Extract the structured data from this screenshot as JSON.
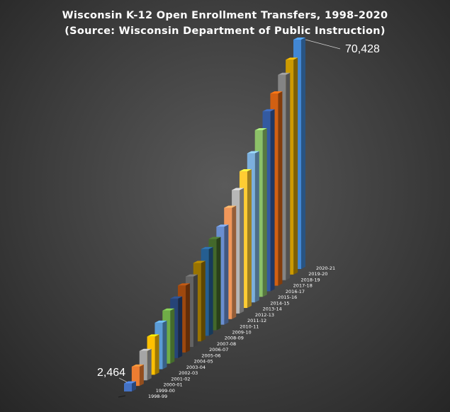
{
  "chart_data": {
    "type": "bar",
    "title": "Wisconsin K-12 Open Enrollment Transfers, 1998-2020",
    "subtitle": "(Source: Wisconsin Department of Public Instruction)",
    "categories": [
      "1998-99",
      "1999-00",
      "2000-01",
      "2001-02",
      "2002-03",
      "2003-04",
      "2004-05",
      "2005-06",
      "2006-07",
      "2007-08",
      "2008-09",
      "2009-10",
      "2010-11",
      "2011-12",
      "2012-13",
      "2013-14",
      "2014-15",
      "2015-16",
      "2016-17",
      "2017-18",
      "2018-19",
      "2019-20",
      "2020-21"
    ],
    "values": [
      2464,
      5926,
      9017,
      11738,
      14281,
      16280,
      18270,
      20590,
      21620,
      24069,
      26630,
      28008,
      30089,
      34194,
      37910,
      41949,
      45785,
      51138,
      55258,
      59045,
      63037,
      65974,
      70428
    ],
    "data_labels": [
      {
        "category": "1998-99",
        "text": "2,464"
      },
      {
        "category": "2020-21",
        "text": "70,428"
      }
    ],
    "colors": [
      "#4472c4",
      "#ed7d31",
      "#a5a5a5",
      "#ffc000",
      "#5b9bd5",
      "#70ad47",
      "#264478",
      "#9e480e",
      "#636363",
      "#997300",
      "#255e91",
      "#43682b",
      "#698ed0",
      "#f1975a",
      "#b7b7b7",
      "#ffcd33",
      "#7cafdd",
      "#8cc168",
      "#335aa1",
      "#d26012",
      "#848484",
      "#cc9a00",
      "#4287d3"
    ],
    "ylim": [
      0,
      72000
    ],
    "style": "3d-column",
    "grid": false,
    "legend": "none"
  }
}
